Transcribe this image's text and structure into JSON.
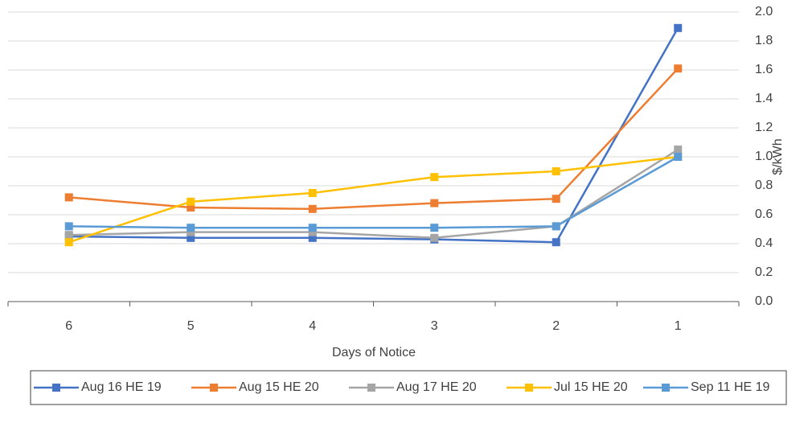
{
  "chart_data": {
    "type": "line",
    "x_label": "Days of Notice",
    "y_label": "$/kWh",
    "categories": [
      "6",
      "5",
      "4",
      "3",
      "2",
      "1"
    ],
    "series": [
      {
        "name": "Aug 16 HE 19",
        "color": "#4472c4",
        "values": [
          0.45,
          0.44,
          0.44,
          0.43,
          0.41,
          1.89
        ]
      },
      {
        "name": "Aug 15 HE 20",
        "color": "#ed7d31",
        "values": [
          0.72,
          0.65,
          0.64,
          0.68,
          0.71,
          1.61
        ]
      },
      {
        "name": "Aug 17 HE 20",
        "color": "#a5a5a5",
        "values": [
          0.46,
          0.48,
          0.48,
          0.44,
          0.52,
          1.05
        ]
      },
      {
        "name": "Jul 15 HE 20",
        "color": "#ffc000",
        "values": [
          0.41,
          0.69,
          0.75,
          0.86,
          0.9,
          1.0
        ]
      },
      {
        "name": "Sep 11 HE 19",
        "color": "#5b9bd5",
        "values": [
          0.52,
          0.51,
          0.51,
          0.51,
          0.52,
          1.0
        ]
      }
    ],
    "ylim": [
      0,
      2
    ],
    "yticks": [
      {
        "value": 0,
        "label": "0.0"
      },
      0.2,
      0.4,
      0.6,
      0.8,
      {
        "value": 1,
        "label": "1.0"
      },
      1.2,
      1.4,
      1.6,
      1.8,
      {
        "value": 2,
        "label": "2.0"
      }
    ],
    "y_axis_side": "right",
    "grid": true,
    "legend": "bottom"
  }
}
